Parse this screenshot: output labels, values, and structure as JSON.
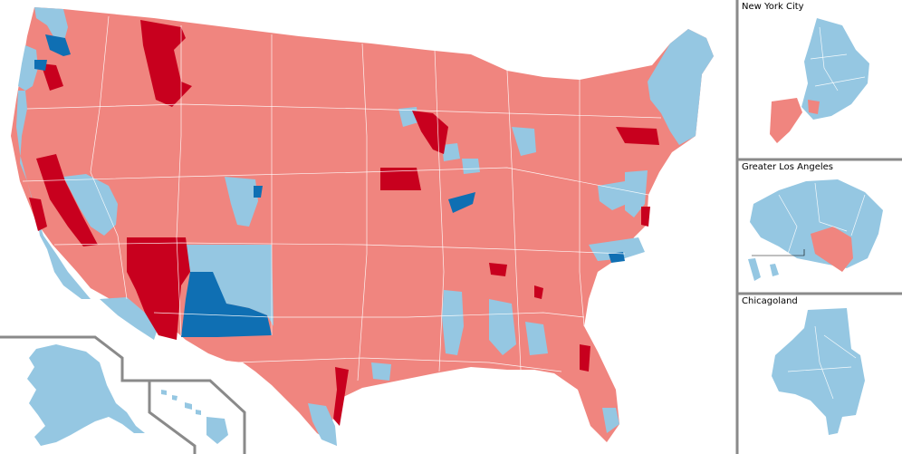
{
  "insets": {
    "nyc": "New York City",
    "la": "Greater Los Angeles",
    "chicago": "Chicagoland"
  },
  "colors": {
    "solid_rep": "#c8001e",
    "lean_rep": "#f0857f",
    "lean_dem": "#95c7e2",
    "solid_dem": "#0f6fb3",
    "frame": "#8a8a8a",
    "background": "#ffffff"
  }
}
